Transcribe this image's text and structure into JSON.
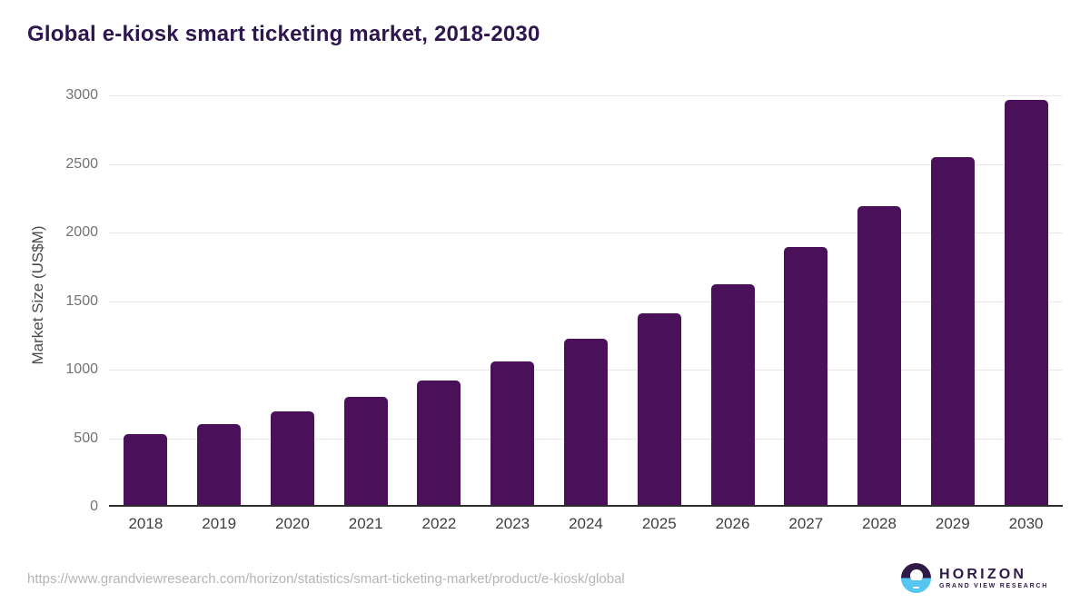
{
  "page": {
    "title": "Global e-kiosk smart ticketing market, 2018-2030"
  },
  "chart_data": {
    "type": "bar",
    "title": "Global e-kiosk smart ticketing market, 2018-2030",
    "categories": [
      "2018",
      "2019",
      "2020",
      "2021",
      "2022",
      "2023",
      "2024",
      "2025",
      "2026",
      "2027",
      "2028",
      "2029",
      "2030"
    ],
    "values": [
      515,
      590,
      685,
      790,
      905,
      1050,
      1210,
      1395,
      1610,
      1880,
      2180,
      2540,
      2955
    ],
    "xlabel": "",
    "ylabel": "Market Size (US$M)",
    "ylim": [
      0,
      3000
    ],
    "ytick_step": 500,
    "yticks": [
      0,
      500,
      1000,
      1500,
      2000,
      2500,
      3000
    ],
    "grid": true,
    "legend_position": "none",
    "bar_color": "#4a1059"
  },
  "footer": {
    "source_url": "https://www.grandviewresearch.com/horizon/statistics/smart-ticketing-market/product/e-kiosk/global",
    "logo_title": "HORIZON",
    "logo_subtitle": "GRAND VIEW RESEARCH"
  },
  "colors": {
    "bar": "#4a1059",
    "title_text": "#2e164e",
    "x_tick_label": "#404040",
    "y_tick_label": "#737373",
    "y_axis_title": "#4a4a4a",
    "gridline": "#e8e8e8",
    "baseline": "#2e2e2e",
    "url_text": "#b5b5b5",
    "logo_dark": "#2e1a47",
    "logo_blue": "#56c5f0"
  }
}
